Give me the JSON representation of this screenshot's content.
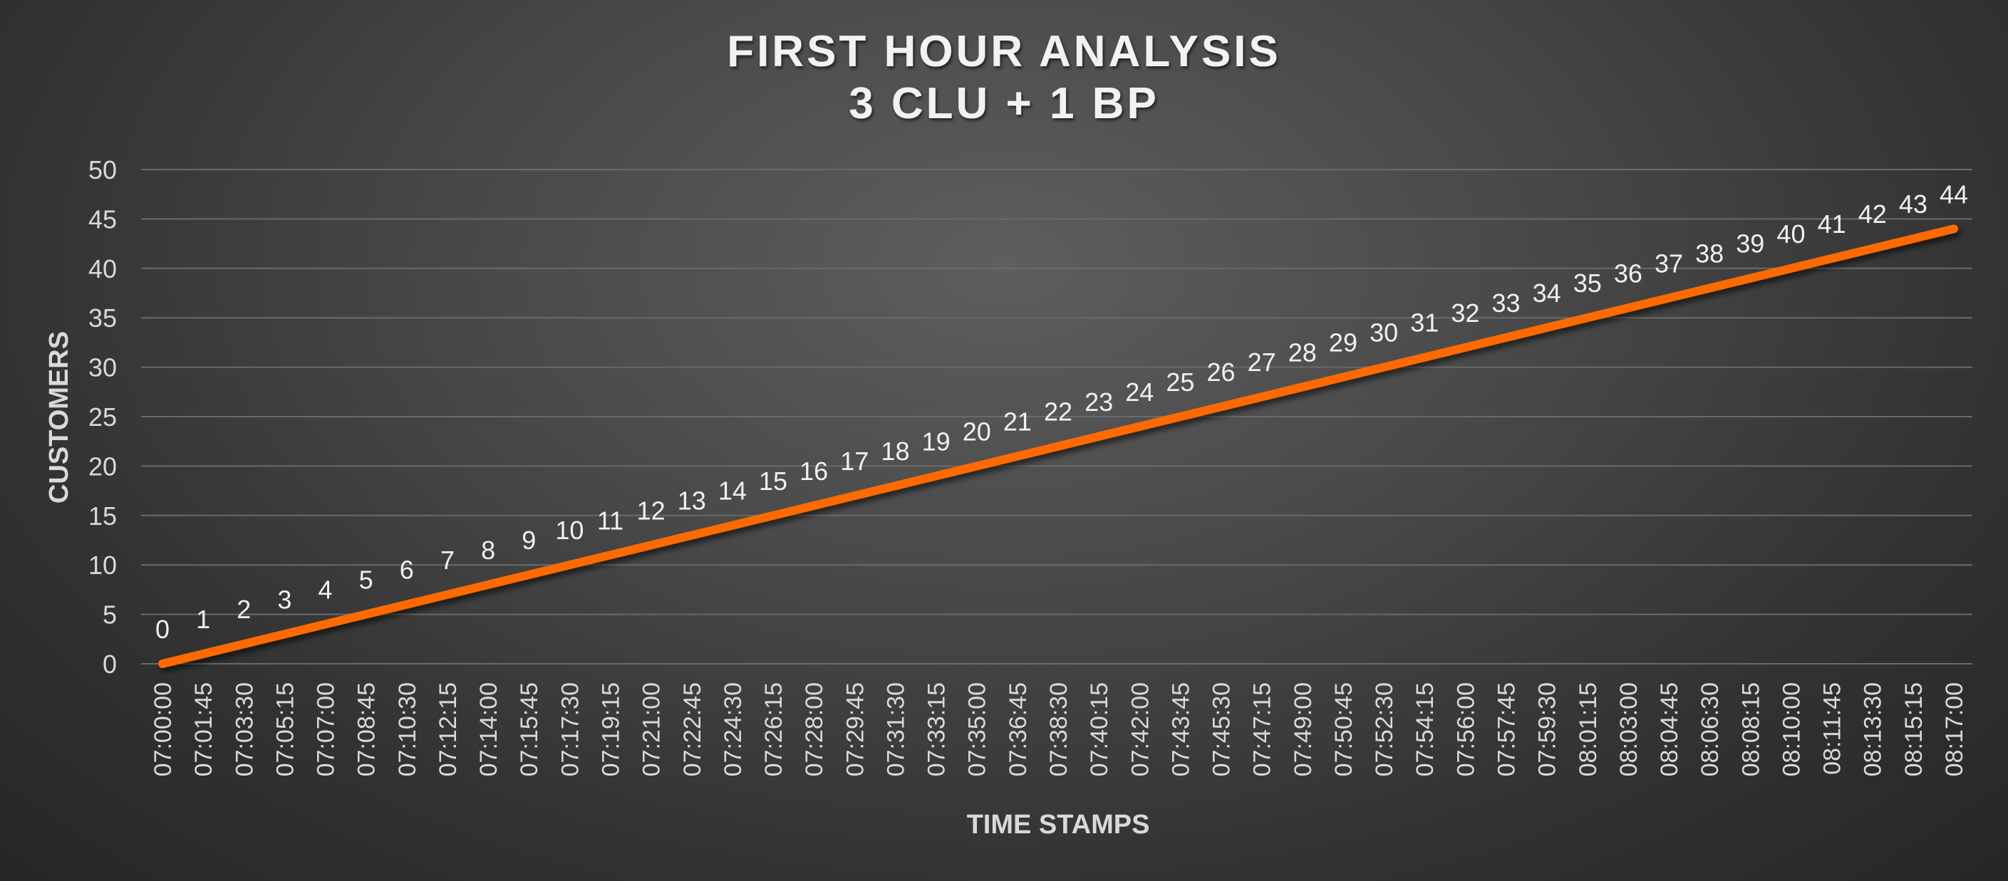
{
  "chart_data": {
    "type": "line",
    "title": "FIRST HOUR ANALYSIS",
    "subtitle": "3 CLU + 1 BP",
    "xlabel": "TIME STAMPS",
    "ylabel": "CUSTOMERS",
    "ylim": [
      0,
      50
    ],
    "yticks": [
      "0",
      "5",
      "10",
      "15",
      "20",
      "25",
      "30",
      "35",
      "40",
      "45",
      "50"
    ],
    "grid": true,
    "legend": "none",
    "line_color": "#ff6a00",
    "categories": [
      "07:00:00",
      "07:01:45",
      "07:03:30",
      "07:05:15",
      "07:07:00",
      "07:08:45",
      "07:10:30",
      "07:12:15",
      "07:14:00",
      "07:15:45",
      "07:17:30",
      "07:19:15",
      "07:21:00",
      "07:22:45",
      "07:24:30",
      "07:26:15",
      "07:28:00",
      "07:29:45",
      "07:31:30",
      "07:33:15",
      "07:35:00",
      "07:36:45",
      "07:38:30",
      "07:40:15",
      "07:42:00",
      "07:43:45",
      "07:45:30",
      "07:47:15",
      "07:49:00",
      "07:50:45",
      "07:52:30",
      "07:54:15",
      "07:56:00",
      "07:57:45",
      "07:59:30",
      "08:01:15",
      "08:03:00",
      "08:04:45",
      "08:06:30",
      "08:08:15",
      "08:10:00",
      "08:11:45",
      "08:13:30",
      "08:15:15",
      "08:17:00"
    ],
    "values": [
      0,
      1,
      2,
      3,
      4,
      5,
      6,
      7,
      8,
      9,
      10,
      11,
      12,
      13,
      14,
      15,
      16,
      17,
      18,
      19,
      20,
      21,
      22,
      23,
      24,
      25,
      26,
      27,
      28,
      29,
      30,
      31,
      32,
      33,
      34,
      35,
      36,
      37,
      38,
      39,
      40,
      41,
      42,
      43,
      44
    ]
  }
}
